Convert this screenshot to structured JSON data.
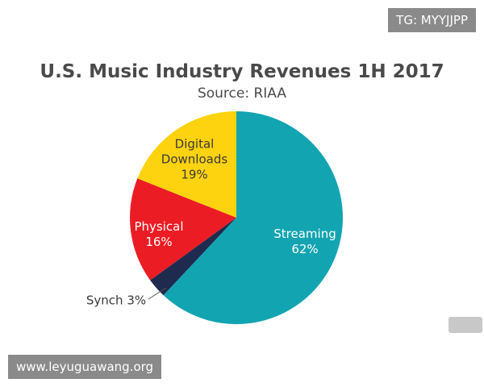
{
  "chart_data": {
    "type": "pie",
    "title": "U.S. Music Industry Revenues 1H 2017",
    "subtitle": "Source: RIAA",
    "categories": [
      "Streaming",
      "Synch",
      "Physical",
      "Digital Downloads"
    ],
    "values": [
      62,
      3,
      16,
      19
    ],
    "value_labels": [
      "62%",
      "3%",
      "16%",
      "19%"
    ],
    "colors": [
      "#12a4b1",
      "#1f2b4e",
      "#ec1c24",
      "#fdd20e"
    ]
  },
  "watermarks": [
    "TG: MYYJJPP",
    "www.leyuguawang.org"
  ]
}
